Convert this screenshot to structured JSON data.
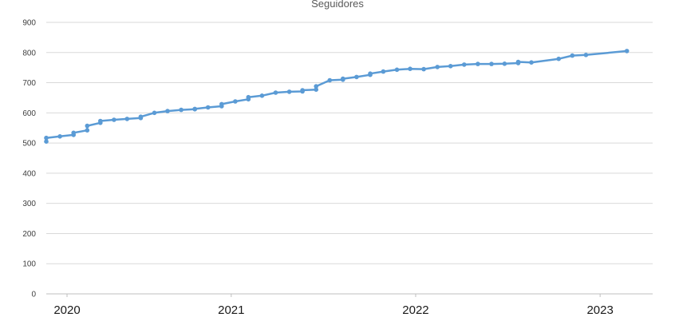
{
  "chart_data": {
    "type": "line",
    "title": "Seguidores",
    "xlabel": "",
    "ylabel": "",
    "ylim": [
      0,
      900
    ],
    "y_ticks": [
      "0",
      "100",
      "200",
      "300",
      "400",
      "500",
      "600",
      "700",
      "800",
      "900"
    ],
    "x_ticks": [
      "2020",
      "2021",
      "2022",
      "2023"
    ],
    "xlim": [
      "2020-01-01",
      "2023-04-15"
    ],
    "grid": true,
    "legend": "none",
    "colors": {
      "line": "#5B9BD5",
      "grid": "#D9D9D9",
      "axis": "#BFBFBF"
    },
    "series": [
      {
        "x": [
          "2020-01-01",
          "2020-01-01",
          "2020-01-28",
          "2020-02-24",
          "2020-02-24",
          "2020-03-22",
          "2020-03-22",
          "2020-04-17",
          "2020-04-17",
          "2020-05-14",
          "2020-06-09",
          "2020-07-06",
          "2020-07-06",
          "2020-08-02",
          "2020-08-28",
          "2020-09-24",
          "2020-10-21",
          "2020-10-21",
          "2020-11-16",
          "2020-12-13",
          "2020-12-13",
          "2021-01-09",
          "2021-02-04",
          "2021-02-04",
          "2021-03-03",
          "2021-03-30",
          "2021-04-26",
          "2021-05-22",
          "2021-05-22",
          "2021-06-18",
          "2021-06-18",
          "2021-07-15",
          "2021-08-10",
          "2021-08-10",
          "2021-09-06",
          "2021-10-03",
          "2021-10-03",
          "2021-10-29",
          "2021-11-25",
          "2021-12-21",
          "2022-01-17",
          "2022-02-13",
          "2022-03-11",
          "2022-04-07",
          "2022-05-04",
          "2022-05-31",
          "2022-06-26",
          "2022-07-23",
          "2022-07-23",
          "2022-08-18",
          "2022-10-11",
          "2022-11-07",
          "2022-12-04",
          "2023-02-23"
        ],
        "y": [
          505,
          517,
          522,
          527,
          534,
          542,
          557,
          567,
          573,
          577,
          580,
          583,
          587,
          600,
          606,
          610,
          612,
          613,
          618,
          622,
          629,
          638,
          645,
          652,
          657,
          667,
          670,
          671,
          675,
          677,
          688,
          708,
          710,
          713,
          719,
          726,
          730,
          737,
          743,
          746,
          745,
          752,
          755,
          760,
          762,
          762,
          763,
          765,
          769,
          767,
          779,
          790,
          792,
          805
        ]
      }
    ]
  }
}
